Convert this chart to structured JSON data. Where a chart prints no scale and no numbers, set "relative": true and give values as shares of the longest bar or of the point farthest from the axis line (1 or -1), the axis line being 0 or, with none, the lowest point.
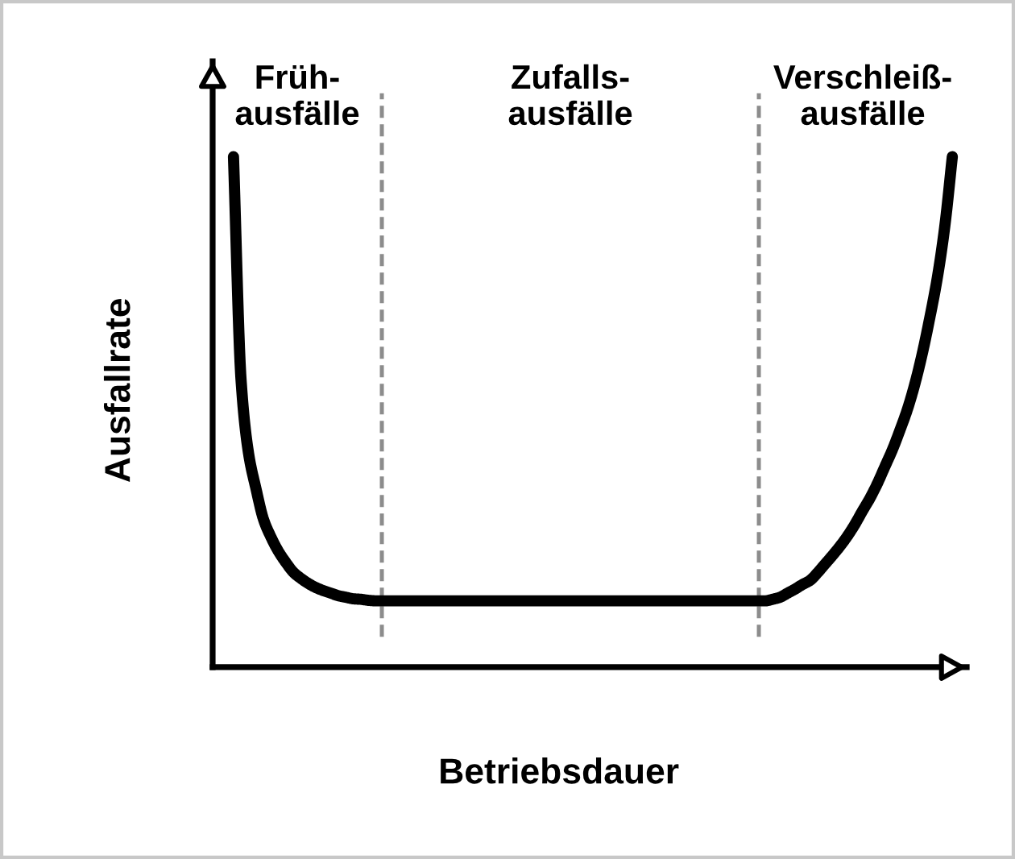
{
  "chart_data": {
    "type": "line",
    "relative": true,
    "xlabel": "Betriebsdauer",
    "ylabel": "Ausfallrate",
    "annotations": [
      "Früh-\nausfälle",
      "Zufalls-\nausfälle",
      "Verschleiß-\nausfälle"
    ],
    "color": "#000000",
    "categories": [
      null,
      null,
      null,
      null,
      null,
      null,
      null,
      null,
      null,
      null,
      null,
      null,
      null,
      null,
      null,
      null,
      null,
      null,
      null,
      null,
      null,
      null,
      null,
      null,
      null,
      null,
      null,
      null,
      null,
      null,
      null,
      null,
      null,
      null,
      null,
      null,
      null,
      null,
      null,
      null,
      null,
      null,
      null,
      null,
      null,
      null,
      null,
      null,
      null,
      null,
      null,
      null,
      null,
      null,
      null,
      null,
      null,
      null,
      null,
      null,
      null,
      null,
      null,
      null,
      null,
      null,
      null,
      null,
      null,
      null,
      null,
      null,
      null,
      null,
      null,
      null,
      null,
      null,
      null,
      null,
      null,
      null,
      null,
      null,
      null,
      null,
      null,
      null,
      null,
      null,
      null,
      null,
      null,
      null,
      null,
      null,
      null
    ],
    "values": [
      1.0,
      0.565,
      0.42,
      0.35,
      0.29,
      0.255,
      0.227,
      0.205,
      0.186,
      0.174,
      0.164,
      0.156,
      0.15,
      0.145,
      0.14,
      0.137,
      0.134,
      0.133,
      0.131,
      0.13,
      0.13,
      0.13,
      0.13,
      0.13,
      0.13,
      0.13,
      0.13,
      0.13,
      0.13,
      0.13,
      0.13,
      0.13,
      0.13,
      0.13,
      0.13,
      0.13,
      0.13,
      0.13,
      0.13,
      0.13,
      0.13,
      0.13,
      0.13,
      0.13,
      0.13,
      0.13,
      0.13,
      0.13,
      0.13,
      0.13,
      0.13,
      0.13,
      0.13,
      0.13,
      0.13,
      0.13,
      0.13,
      0.13,
      0.13,
      0.13,
      0.13,
      0.13,
      0.13,
      0.13,
      0.13,
      0.13,
      0.13,
      0.13,
      0.13,
      0.13,
      0.13,
      0.13,
      0.133,
      0.137,
      0.145,
      0.153,
      0.162,
      0.17,
      0.185,
      0.202,
      0.219,
      0.237,
      0.257,
      0.28,
      0.306,
      0.331,
      0.36,
      0.393,
      0.426,
      0.464,
      0.505,
      0.555,
      0.615,
      0.685,
      0.763,
      0.864,
      1.0
    ]
  }
}
